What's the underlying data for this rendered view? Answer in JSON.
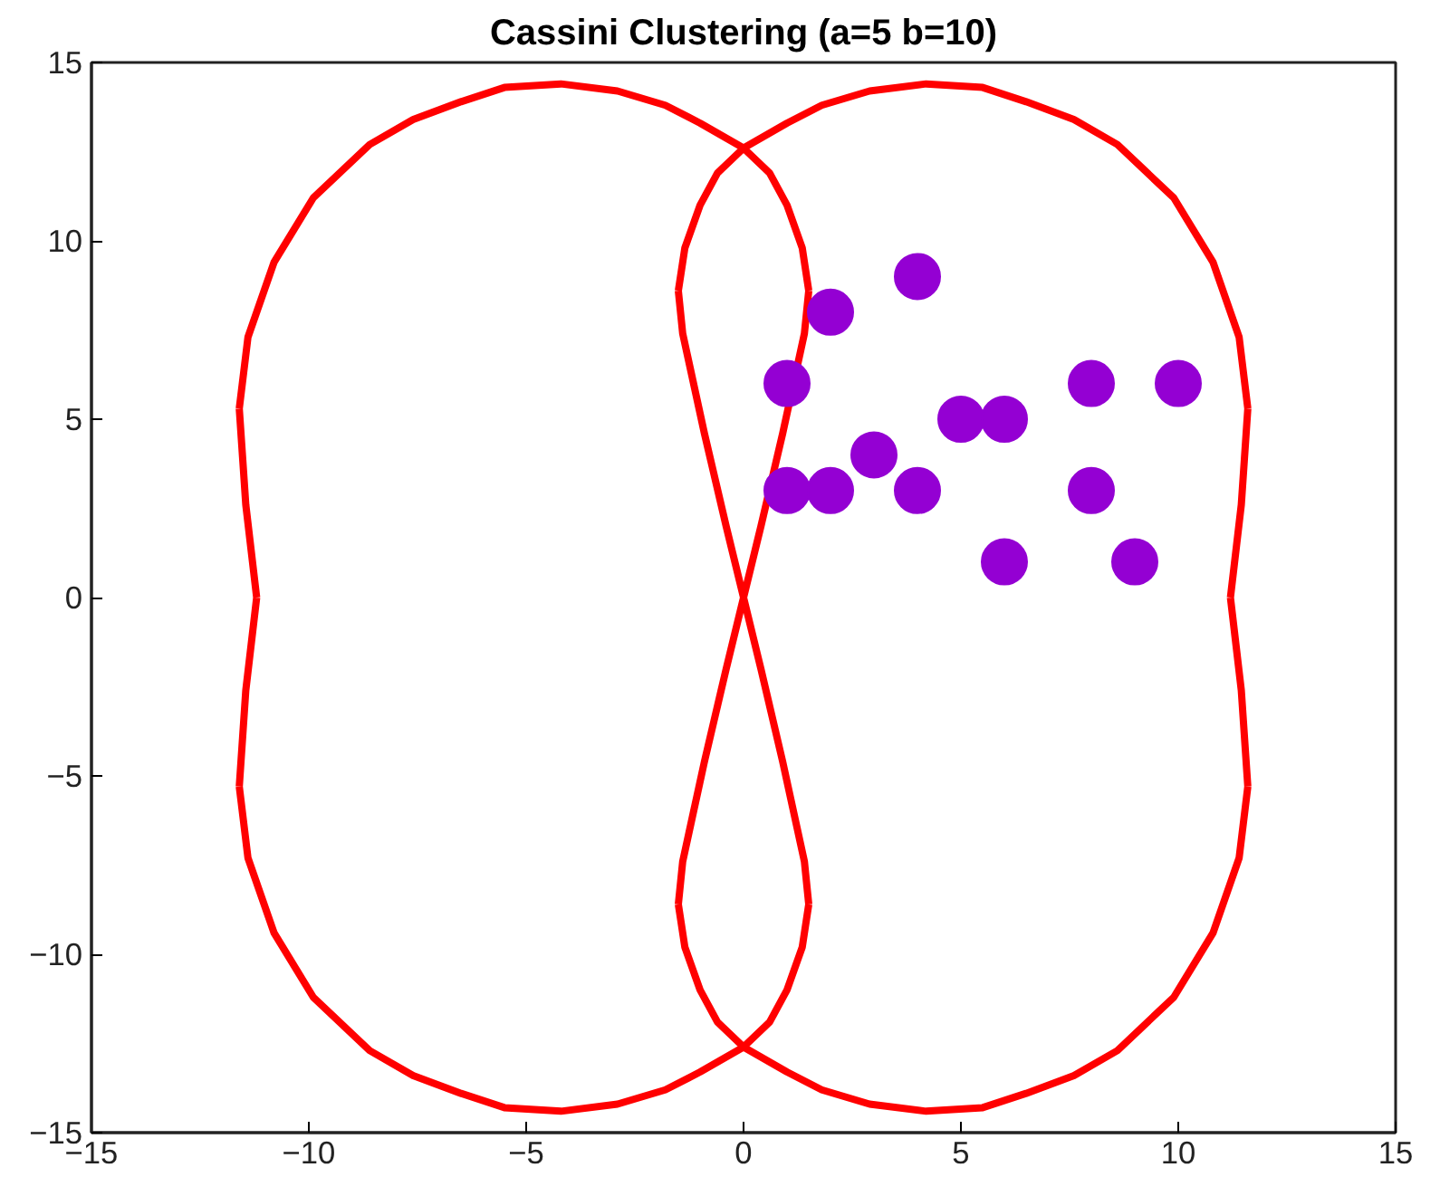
{
  "chart_data": {
    "type": "scatter",
    "title": "Cassini Clustering (a=5 b=10)",
    "xlim": [
      -15,
      15
    ],
    "ylim": [
      -15,
      15
    ],
    "xticks": [
      {
        "value": -15,
        "label": "−15"
      },
      {
        "value": -10,
        "label": "−10"
      },
      {
        "value": -5,
        "label": "−5"
      },
      0,
      5,
      10,
      15
    ],
    "yticks": [
      {
        "value": -15,
        "label": "−15"
      },
      {
        "value": -10,
        "label": "−10"
      },
      {
        "value": -5,
        "label": "−5"
      },
      0,
      5,
      10,
      15
    ],
    "grid": false,
    "marker": "circle",
    "series": [
      {
        "type": "line",
        "color": "#ff0000",
        "line_style": "solid",
        "marker": "none",
        "x": [
          0,
          -1.0,
          -1.8,
          -2.9,
          -4.2,
          -5.5,
          -6.5,
          -7.6,
          -8.6,
          -9.9,
          -10.8,
          -11.4,
          -11.6,
          null,
          -11.6,
          -11.45,
          -11.2,
          null,
          -11.2,
          -11.45,
          -11.6,
          null,
          -11.6,
          -11.4,
          -10.8,
          -9.9,
          -8.6,
          -7.6,
          -6.5,
          -5.5,
          -4.2,
          -2.9,
          -1.8,
          -1.0,
          0,
          0.6,
          1.0,
          1.35,
          1.5,
          null,
          1.5,
          1.4,
          0.9,
          0.4,
          0,
          null,
          0,
          0.4,
          0.9,
          1.4,
          1.5,
          null,
          1.5,
          1.35,
          1.0,
          0.6,
          0
        ],
        "values": [
          12.6,
          13.3,
          13.8,
          14.2,
          14.4,
          14.3,
          13.9,
          13.4,
          12.7,
          11.2,
          9.4,
          7.3,
          5.3,
          null,
          5.3,
          2.6,
          0,
          null,
          0,
          -2.6,
          -5.3,
          null,
          -5.3,
          -7.3,
          -9.4,
          -11.2,
          -12.7,
          -13.4,
          -13.9,
          -14.3,
          -14.4,
          -14.2,
          -13.8,
          -13.3,
          -12.6,
          -11.9,
          -11.0,
          -9.8,
          -8.6,
          null,
          -8.6,
          -7.4,
          -4.6,
          -2.0,
          0,
          null,
          0,
          2.0,
          4.6,
          7.4,
          8.6,
          null,
          8.6,
          9.8,
          11.0,
          11.9,
          12.6
        ]
      },
      {
        "type": "line",
        "color": "#ff0000",
        "line_style": "solid",
        "marker": "none",
        "x": [
          0,
          1.0,
          1.8,
          2.9,
          4.2,
          5.5,
          6.5,
          7.6,
          8.6,
          9.9,
          10.8,
          11.4,
          11.6,
          null,
          11.6,
          11.45,
          11.2,
          null,
          11.2,
          11.45,
          11.6,
          null,
          11.6,
          11.4,
          10.8,
          9.9,
          8.6,
          7.6,
          6.5,
          5.5,
          4.2,
          2.9,
          1.8,
          1.0,
          0,
          -0.6,
          -1.0,
          -1.35,
          -1.5,
          null,
          -1.5,
          -1.4,
          -0.9,
          -0.4,
          0,
          null,
          0,
          -0.4,
          -0.9,
          -1.4,
          -1.5,
          null,
          -1.5,
          -1.35,
          -1.0,
          -0.6,
          0
        ],
        "values": [
          12.6,
          13.3,
          13.8,
          14.2,
          14.4,
          14.3,
          13.9,
          13.4,
          12.7,
          11.2,
          9.4,
          7.3,
          5.3,
          null,
          5.3,
          2.6,
          0,
          null,
          0,
          -2.6,
          -5.3,
          null,
          -5.3,
          -7.3,
          -9.4,
          -11.2,
          -12.7,
          -13.4,
          -13.9,
          -14.3,
          -14.4,
          -14.2,
          -13.8,
          -13.3,
          -12.6,
          -11.9,
          -11.0,
          -9.8,
          -8.6,
          null,
          -8.6,
          -7.4,
          -4.6,
          -2.0,
          0,
          null,
          0,
          2.0,
          4.6,
          7.4,
          8.6,
          null,
          8.6,
          9.8,
          11.0,
          11.9,
          12.6
        ]
      },
      {
        "color": "#9400d3",
        "x": [
          1,
          2,
          4,
          1,
          2,
          3,
          4,
          5,
          6,
          6,
          8,
          8,
          9,
          10
        ],
        "values": [
          6,
          8,
          9,
          3,
          3,
          4,
          3,
          5,
          5,
          1,
          6,
          3,
          1,
          6
        ]
      }
    ]
  }
}
